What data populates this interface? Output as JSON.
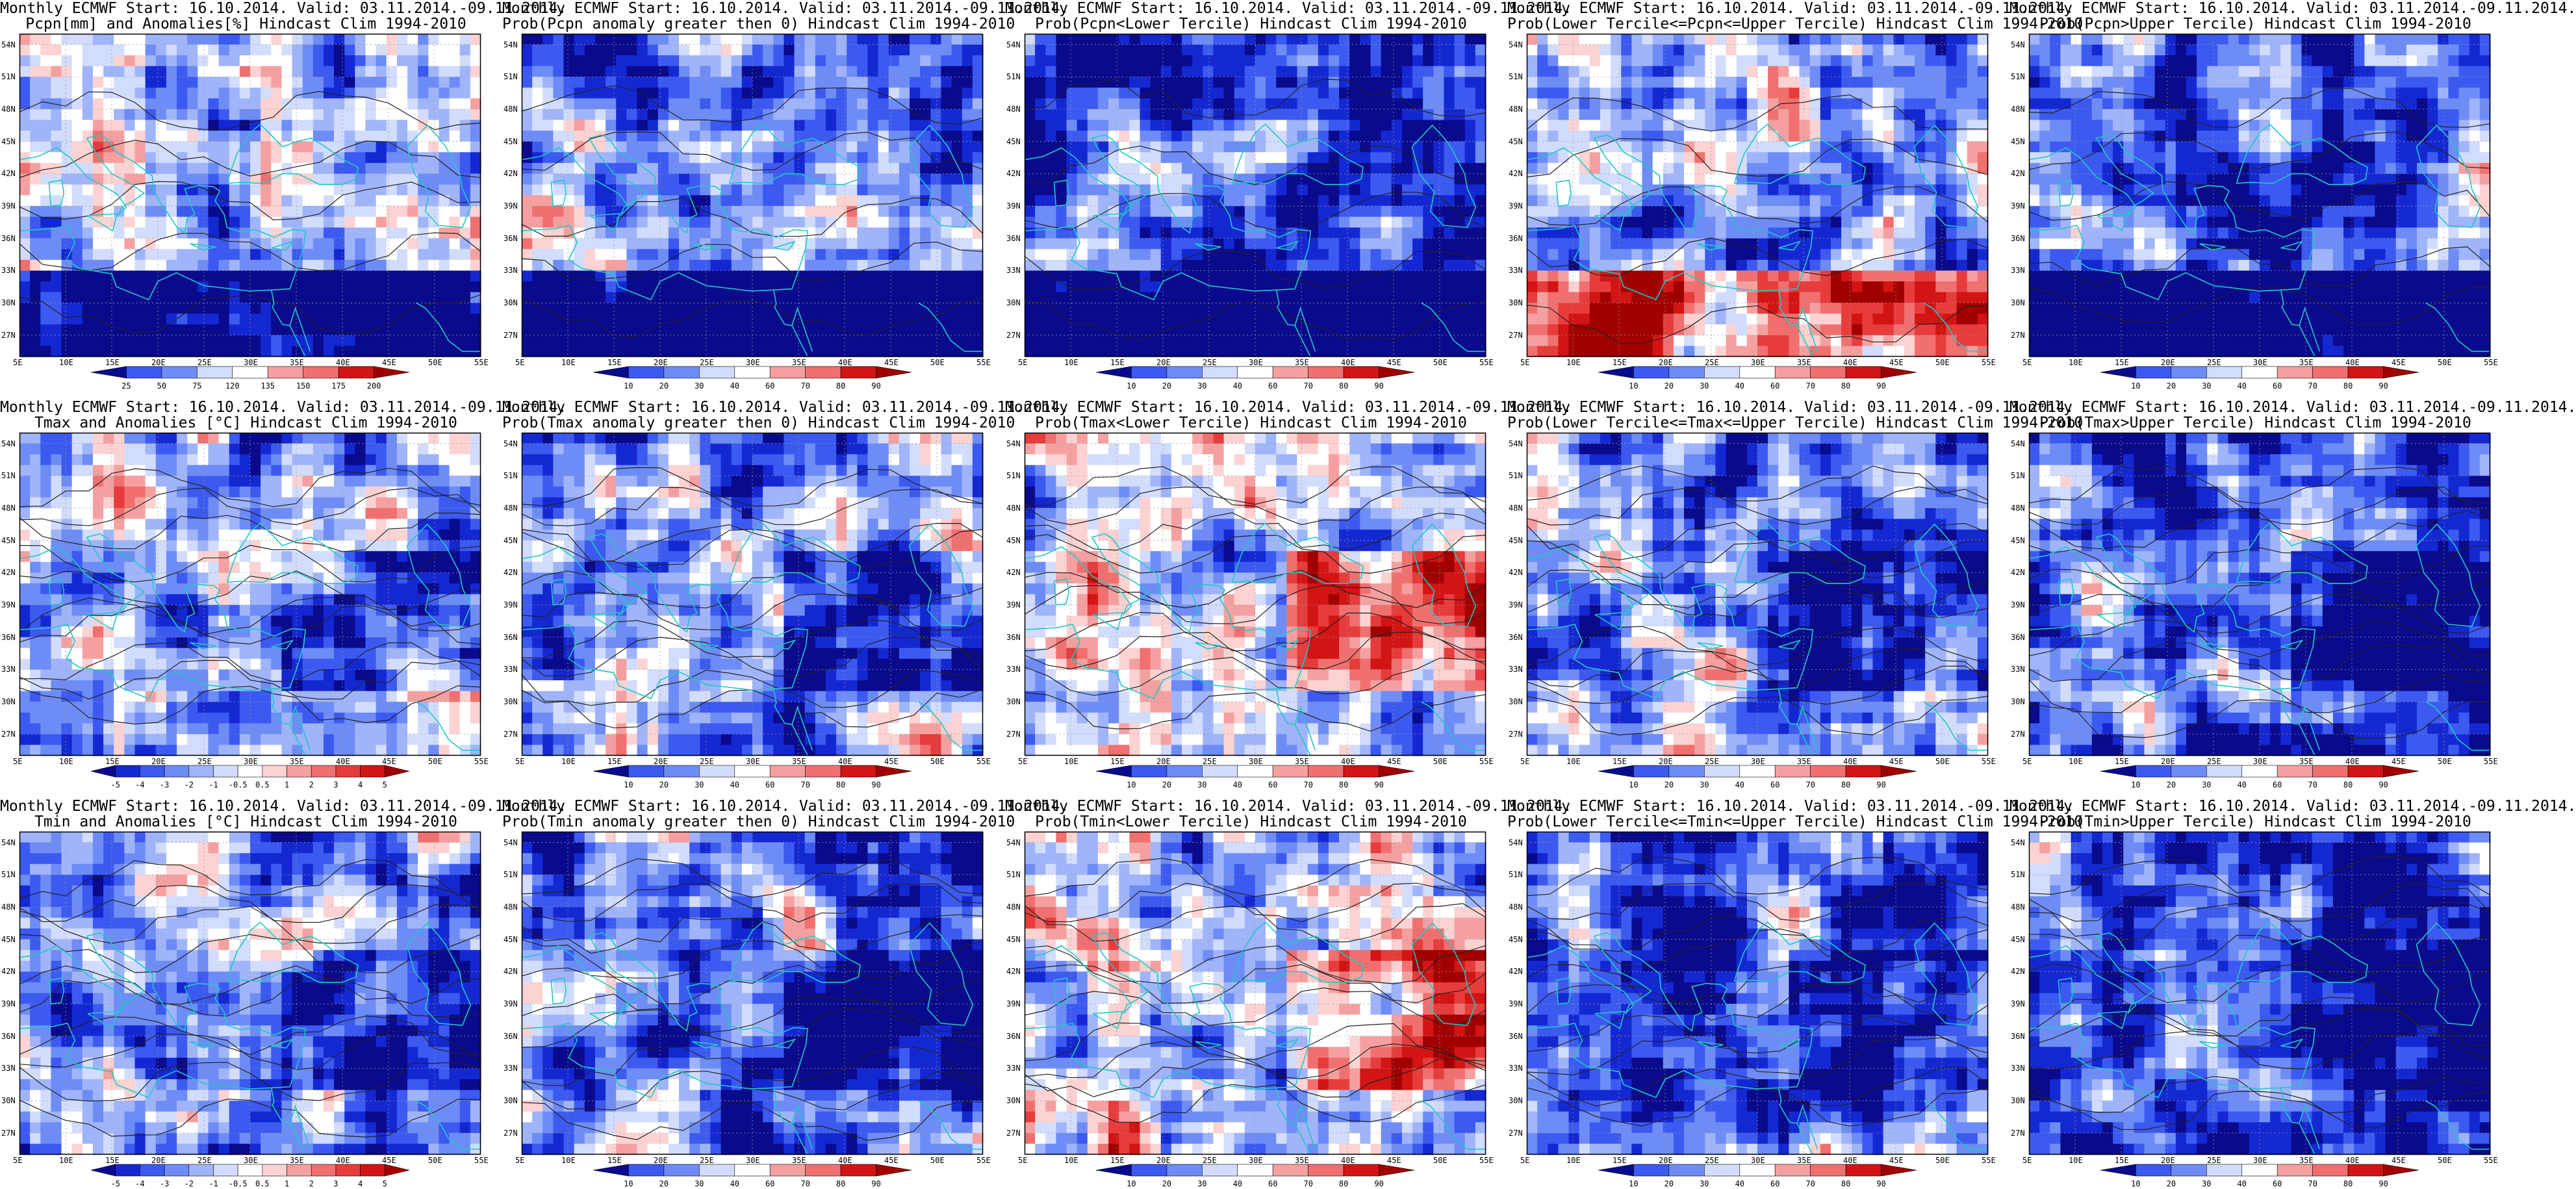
{
  "chart_data": {
    "type": "heatmap",
    "grid": {
      "rows": [
        "Pcpn",
        "Tmax",
        "Tmin"
      ],
      "columns": [
        "anomaly",
        "prob_gt_0",
        "prob_lower_tercile",
        "prob_middle_tercile",
        "prob_upper_tercile"
      ]
    },
    "axes": {
      "x_ticks": [
        "5E",
        "10E",
        "15E",
        "20E",
        "25E",
        "30E",
        "35E",
        "40E",
        "45E",
        "50E",
        "55E"
      ],
      "y_ticks": [
        "27N",
        "30N",
        "33N",
        "36N",
        "39N",
        "42N",
        "45N",
        "48N",
        "51N",
        "54N"
      ],
      "xlim": [
        5,
        55
      ],
      "ylim": [
        25,
        55
      ]
    },
    "colors": {
      "neg": [
        "#0a0a8c",
        "#1428d2",
        "#3c5af0",
        "#6e8cf5",
        "#a0b4fa",
        "#d2dcfc"
      ],
      "zero": "#ffffff",
      "pos": [
        "#fcd2d2",
        "#f5a0a0",
        "#f07070",
        "#e63c3c",
        "#d21414",
        "#a00000"
      ]
    },
    "panels": [
      {
        "id": "pcpn-anom",
        "row": 0,
        "col": 0,
        "title1": "Monthly ECMWF Start: 16.10.2014. Valid: 03.11.2014.-09.11.2014.",
        "title2": "Pcpn[mm] and Anomalies[%] Hindcast Clim 1994-2010",
        "scale": "anom",
        "colorbar": [
          "25",
          "50",
          "75",
          "120",
          "135",
          "150",
          "175",
          "200"
        ],
        "seed": 11,
        "bias": -0.2
      },
      {
        "id": "pcpn-pgt0",
        "row": 0,
        "col": 1,
        "title1": "Monthly ECMWF Start: 16.10.2014. Valid: 03.11.2014.-09.11.2014.",
        "title2": "Prob(Pcpn anomaly greater then 0) Hindcast Clim 1994-2010",
        "scale": "prob",
        "colorbar": [
          "10",
          "20",
          "30",
          "40",
          "60",
          "70",
          "80",
          "90"
        ],
        "seed": 12,
        "bias": -0.5
      },
      {
        "id": "pcpn-plow",
        "row": 0,
        "col": 2,
        "title1": "Monthly ECMWF Start: 16.10.2014. Valid: 03.11.2014.-09.11.2014.",
        "title2": "Prob(Pcpn<Lower Tercile) Hindcast Clim 1994-2010",
        "scale": "prob",
        "colorbar": [
          "10",
          "20",
          "30",
          "40",
          "60",
          "70",
          "80",
          "90"
        ],
        "seed": 13,
        "bias": -0.7
      },
      {
        "id": "pcpn-pmid",
        "row": 0,
        "col": 3,
        "title1": "Monthly ECMWF Start: 16.10.2014. Valid: 03.11.2014.-09.11.2014.",
        "title2": "Prob(Lower Tercile<=Pcpn<=Upper Tercile) Hindcast Clim 1994-2010",
        "scale": "prob",
        "colorbar": [
          "10",
          "20",
          "30",
          "40",
          "60",
          "70",
          "80",
          "90"
        ],
        "seed": 14,
        "bias": -0.3
      },
      {
        "id": "pcpn-pup",
        "row": 0,
        "col": 4,
        "title1": "Monthly ECMWF Start: 16.10.2014. Valid: 03.11.2014.-09.11.2014.",
        "title2": "Prob(Pcpn>Upper Tercile) Hindcast Clim 1994-2010",
        "scale": "prob",
        "colorbar": [
          "10",
          "20",
          "30",
          "40",
          "60",
          "70",
          "80",
          "90"
        ],
        "seed": 15,
        "bias": -0.5
      },
      {
        "id": "tmax-anom",
        "row": 1,
        "col": 0,
        "title1": "Monthly ECMWF Start: 16.10.2014. Valid: 03.11.2014.-09.11.2014.",
        "title2": "Tmax and Anomalies [°C] Hindcast Clim 1994-2010",
        "scale": "anom",
        "colorbar": [
          "-5",
          "-4",
          "-3",
          "-2",
          "-1",
          "-0.5",
          "0.5",
          "1",
          "2",
          "3",
          "4",
          "5"
        ],
        "seed": 21,
        "bias": -0.3
      },
      {
        "id": "tmax-pgt0",
        "row": 1,
        "col": 1,
        "title1": "Monthly ECMWF Start: 16.10.2014. Valid: 03.11.2014.-09.11.2014.",
        "title2": "Prob(Tmax anomaly greater then 0) Hindcast Clim 1994-2010",
        "scale": "prob",
        "colorbar": [
          "10",
          "20",
          "30",
          "40",
          "60",
          "70",
          "80",
          "90"
        ],
        "seed": 22,
        "bias": -0.35
      },
      {
        "id": "tmax-plow",
        "row": 1,
        "col": 2,
        "title1": "Monthly ECMWF Start: 16.10.2014. Valid: 03.11.2014.-09.11.2014.",
        "title2": "Prob(Tmax<Lower Tercile) Hindcast Clim 1994-2010",
        "scale": "prob",
        "colorbar": [
          "10",
          "20",
          "30",
          "40",
          "60",
          "70",
          "80",
          "90"
        ],
        "seed": 23,
        "bias": -0.1
      },
      {
        "id": "tmax-pmid",
        "row": 1,
        "col": 3,
        "title1": "Monthly ECMWF Start: 16.10.2014. Valid: 03.11.2014.-09.11.2014.",
        "title2": "Prob(Lower Tercile<=Tmax<=Upper Tercile) Hindcast Clim 1994-2010",
        "scale": "prob",
        "colorbar": [
          "10",
          "20",
          "30",
          "40",
          "60",
          "70",
          "80",
          "90"
        ],
        "seed": 24,
        "bias": -0.45
      },
      {
        "id": "tmax-pup",
        "row": 1,
        "col": 4,
        "title1": "Monthly ECMWF Start: 16.10.2014. Valid: 03.11.2014.-09.11.2014.",
        "title2": "Prob(Tmax>Upper Tercile) Hindcast Clim 1994-2010",
        "scale": "prob",
        "colorbar": [
          "10",
          "20",
          "30",
          "40",
          "60",
          "70",
          "80",
          "90"
        ],
        "seed": 25,
        "bias": -0.6
      },
      {
        "id": "tmin-anom",
        "row": 2,
        "col": 0,
        "title1": "Monthly ECMWF Start: 16.10.2014. Valid: 03.11.2014.-09.11.2014.",
        "title2": "Tmin and Anomalies [°C] Hindcast Clim 1994-2010",
        "scale": "anom",
        "colorbar": [
          "-5",
          "-4",
          "-3",
          "-2",
          "-1",
          "-0.5",
          "0.5",
          "1",
          "2",
          "3",
          "4",
          "5"
        ],
        "seed": 31,
        "bias": -0.35
      },
      {
        "id": "tmin-pgt0",
        "row": 2,
        "col": 1,
        "title1": "Monthly ECMWF Start: 16.10.2014. Valid: 03.11.2014.-09.11.2014.",
        "title2": "Prob(Tmin anomaly greater then 0) Hindcast Clim 1994-2010",
        "scale": "prob",
        "colorbar": [
          "10",
          "20",
          "30",
          "40",
          "60",
          "70",
          "80",
          "90"
        ],
        "seed": 32,
        "bias": -0.45
      },
      {
        "id": "tmin-plow",
        "row": 2,
        "col": 2,
        "title1": "Monthly ECMWF Start: 16.10.2014. Valid: 03.11.2014.-09.11.2014.",
        "title2": "Prob(Tmin<Lower Tercile) Hindcast Clim 1994-2010",
        "scale": "prob",
        "colorbar": [
          "10",
          "20",
          "30",
          "40",
          "60",
          "70",
          "80",
          "90"
        ],
        "seed": 33,
        "bias": -0.15
      },
      {
        "id": "tmin-pmid",
        "row": 2,
        "col": 3,
        "title1": "Monthly ECMWF Start: 16.10.2014. Valid: 03.11.2014.-09.11.2014.",
        "title2": "Prob(Lower Tercile<=Tmin<=Upper Tercile) Hindcast Clim 1994-2010",
        "scale": "prob",
        "colorbar": [
          "10",
          "20",
          "30",
          "40",
          "60",
          "70",
          "80",
          "90"
        ],
        "seed": 34,
        "bias": -0.5
      },
      {
        "id": "tmin-pup",
        "row": 2,
        "col": 4,
        "title1": "Monthly ECMWF Start: 16.10.2014. Valid: 03.11.2014.-09.11.2014.",
        "title2": "Prob(Tmin>Upper Tercile) Hindcast Clim 1994-2010",
        "scale": "prob",
        "colorbar": [
          "10",
          "20",
          "30",
          "40",
          "60",
          "70",
          "80",
          "90"
        ],
        "seed": 35,
        "bias": -0.65
      }
    ]
  }
}
